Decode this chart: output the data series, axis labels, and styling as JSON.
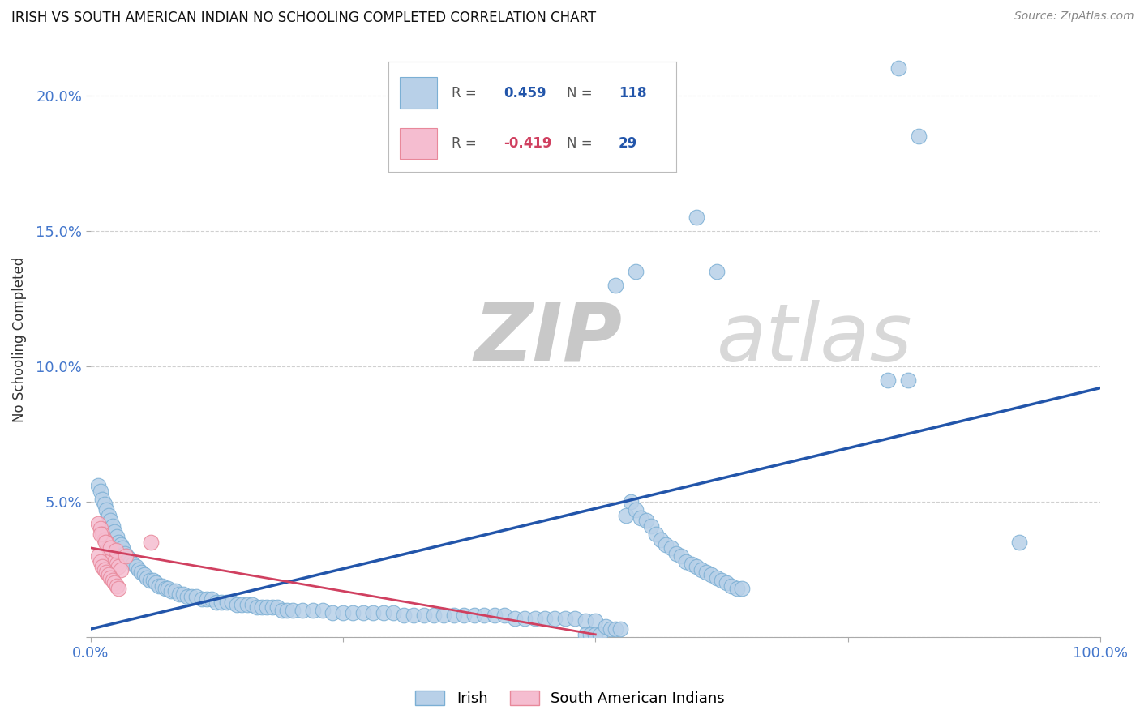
{
  "title": "IRISH VS SOUTH AMERICAN INDIAN NO SCHOOLING COMPLETED CORRELATION CHART",
  "source": "Source: ZipAtlas.com",
  "ylabel": "No Schooling Completed",
  "xlim": [
    0,
    1.0
  ],
  "ylim": [
    0,
    0.22
  ],
  "background_color": "#ffffff",
  "grid_color": "#d0d0d0",
  "irish_color": "#b8d0e8",
  "irish_edge_color": "#7bafd4",
  "sa_indian_color": "#f5bdd0",
  "sa_indian_edge_color": "#e8889a",
  "irish_line_color": "#2255aa",
  "sa_indian_line_color": "#d04060",
  "watermark_color": "#dddddd",
  "tick_color": "#4477cc",
  "irish_scatter": [
    [
      0.008,
      0.056
    ],
    [
      0.01,
      0.054
    ],
    [
      0.012,
      0.051
    ],
    [
      0.014,
      0.049
    ],
    [
      0.016,
      0.047
    ],
    [
      0.018,
      0.045
    ],
    [
      0.02,
      0.043
    ],
    [
      0.022,
      0.041
    ],
    [
      0.024,
      0.039
    ],
    [
      0.026,
      0.037
    ],
    [
      0.028,
      0.035
    ],
    [
      0.03,
      0.034
    ],
    [
      0.032,
      0.033
    ],
    [
      0.034,
      0.031
    ],
    [
      0.036,
      0.03
    ],
    [
      0.038,
      0.029
    ],
    [
      0.04,
      0.028
    ],
    [
      0.042,
      0.027
    ],
    [
      0.045,
      0.026
    ],
    [
      0.048,
      0.025
    ],
    [
      0.05,
      0.024
    ],
    [
      0.053,
      0.023
    ],
    [
      0.056,
      0.022
    ],
    [
      0.059,
      0.021
    ],
    [
      0.062,
      0.021
    ],
    [
      0.065,
      0.02
    ],
    [
      0.068,
      0.019
    ],
    [
      0.071,
      0.019
    ],
    [
      0.074,
      0.018
    ],
    [
      0.077,
      0.018
    ],
    [
      0.08,
      0.017
    ],
    [
      0.084,
      0.017
    ],
    [
      0.088,
      0.016
    ],
    [
      0.092,
      0.016
    ],
    [
      0.096,
      0.015
    ],
    [
      0.1,
      0.015
    ],
    [
      0.105,
      0.015
    ],
    [
      0.11,
      0.014
    ],
    [
      0.115,
      0.014
    ],
    [
      0.12,
      0.014
    ],
    [
      0.125,
      0.013
    ],
    [
      0.13,
      0.013
    ],
    [
      0.135,
      0.013
    ],
    [
      0.14,
      0.013
    ],
    [
      0.145,
      0.012
    ],
    [
      0.15,
      0.012
    ],
    [
      0.155,
      0.012
    ],
    [
      0.16,
      0.012
    ],
    [
      0.165,
      0.011
    ],
    [
      0.17,
      0.011
    ],
    [
      0.175,
      0.011
    ],
    [
      0.18,
      0.011
    ],
    [
      0.185,
      0.011
    ],
    [
      0.19,
      0.01
    ],
    [
      0.195,
      0.01
    ],
    [
      0.2,
      0.01
    ],
    [
      0.21,
      0.01
    ],
    [
      0.22,
      0.01
    ],
    [
      0.23,
      0.01
    ],
    [
      0.24,
      0.009
    ],
    [
      0.25,
      0.009
    ],
    [
      0.26,
      0.009
    ],
    [
      0.27,
      0.009
    ],
    [
      0.28,
      0.009
    ],
    [
      0.29,
      0.009
    ],
    [
      0.3,
      0.009
    ],
    [
      0.31,
      0.008
    ],
    [
      0.32,
      0.008
    ],
    [
      0.33,
      0.008
    ],
    [
      0.34,
      0.008
    ],
    [
      0.35,
      0.008
    ],
    [
      0.36,
      0.008
    ],
    [
      0.37,
      0.008
    ],
    [
      0.38,
      0.008
    ],
    [
      0.39,
      0.008
    ],
    [
      0.4,
      0.008
    ],
    [
      0.41,
      0.008
    ],
    [
      0.42,
      0.007
    ],
    [
      0.43,
      0.007
    ],
    [
      0.44,
      0.007
    ],
    [
      0.45,
      0.007
    ],
    [
      0.46,
      0.007
    ],
    [
      0.47,
      0.007
    ],
    [
      0.48,
      0.007
    ],
    [
      0.49,
      0.006
    ],
    [
      0.5,
      0.006
    ],
    [
      0.49,
      0.001
    ],
    [
      0.495,
      0.001
    ],
    [
      0.5,
      0.001
    ],
    [
      0.505,
      0.001
    ],
    [
      0.51,
      0.004
    ],
    [
      0.515,
      0.003
    ],
    [
      0.52,
      0.003
    ],
    [
      0.525,
      0.003
    ],
    [
      0.53,
      0.045
    ],
    [
      0.535,
      0.05
    ],
    [
      0.54,
      0.047
    ],
    [
      0.545,
      0.044
    ],
    [
      0.55,
      0.043
    ],
    [
      0.555,
      0.041
    ],
    [
      0.56,
      0.038
    ],
    [
      0.565,
      0.036
    ],
    [
      0.57,
      0.034
    ],
    [
      0.575,
      0.033
    ],
    [
      0.58,
      0.031
    ],
    [
      0.585,
      0.03
    ],
    [
      0.59,
      0.028
    ],
    [
      0.595,
      0.027
    ],
    [
      0.6,
      0.026
    ],
    [
      0.605,
      0.025
    ],
    [
      0.61,
      0.024
    ],
    [
      0.615,
      0.023
    ],
    [
      0.62,
      0.022
    ],
    [
      0.625,
      0.021
    ],
    [
      0.63,
      0.02
    ],
    [
      0.635,
      0.019
    ],
    [
      0.64,
      0.018
    ],
    [
      0.645,
      0.018
    ],
    [
      0.52,
      0.13
    ],
    [
      0.54,
      0.135
    ],
    [
      0.6,
      0.155
    ],
    [
      0.62,
      0.135
    ],
    [
      0.79,
      0.095
    ],
    [
      0.81,
      0.095
    ],
    [
      0.8,
      0.21
    ],
    [
      0.82,
      0.185
    ],
    [
      0.92,
      0.035
    ]
  ],
  "sa_scatter": [
    [
      0.008,
      0.042
    ],
    [
      0.01,
      0.04
    ],
    [
      0.012,
      0.038
    ],
    [
      0.014,
      0.036
    ],
    [
      0.016,
      0.035
    ],
    [
      0.018,
      0.033
    ],
    [
      0.02,
      0.031
    ],
    [
      0.022,
      0.03
    ],
    [
      0.024,
      0.028
    ],
    [
      0.026,
      0.027
    ],
    [
      0.028,
      0.026
    ],
    [
      0.03,
      0.025
    ],
    [
      0.008,
      0.03
    ],
    [
      0.01,
      0.028
    ],
    [
      0.012,
      0.026
    ],
    [
      0.014,
      0.025
    ],
    [
      0.016,
      0.024
    ],
    [
      0.018,
      0.023
    ],
    [
      0.02,
      0.022
    ],
    [
      0.022,
      0.021
    ],
    [
      0.024,
      0.02
    ],
    [
      0.026,
      0.019
    ],
    [
      0.028,
      0.018
    ],
    [
      0.01,
      0.038
    ],
    [
      0.015,
      0.035
    ],
    [
      0.02,
      0.033
    ],
    [
      0.025,
      0.032
    ],
    [
      0.035,
      0.03
    ],
    [
      0.06,
      0.035
    ]
  ],
  "irish_trend_x": [
    0.0,
    1.0
  ],
  "irish_trend_y": [
    0.003,
    0.092
  ],
  "sa_trend_x": [
    0.0,
    0.5
  ],
  "sa_trend_y": [
    0.033,
    0.001
  ]
}
